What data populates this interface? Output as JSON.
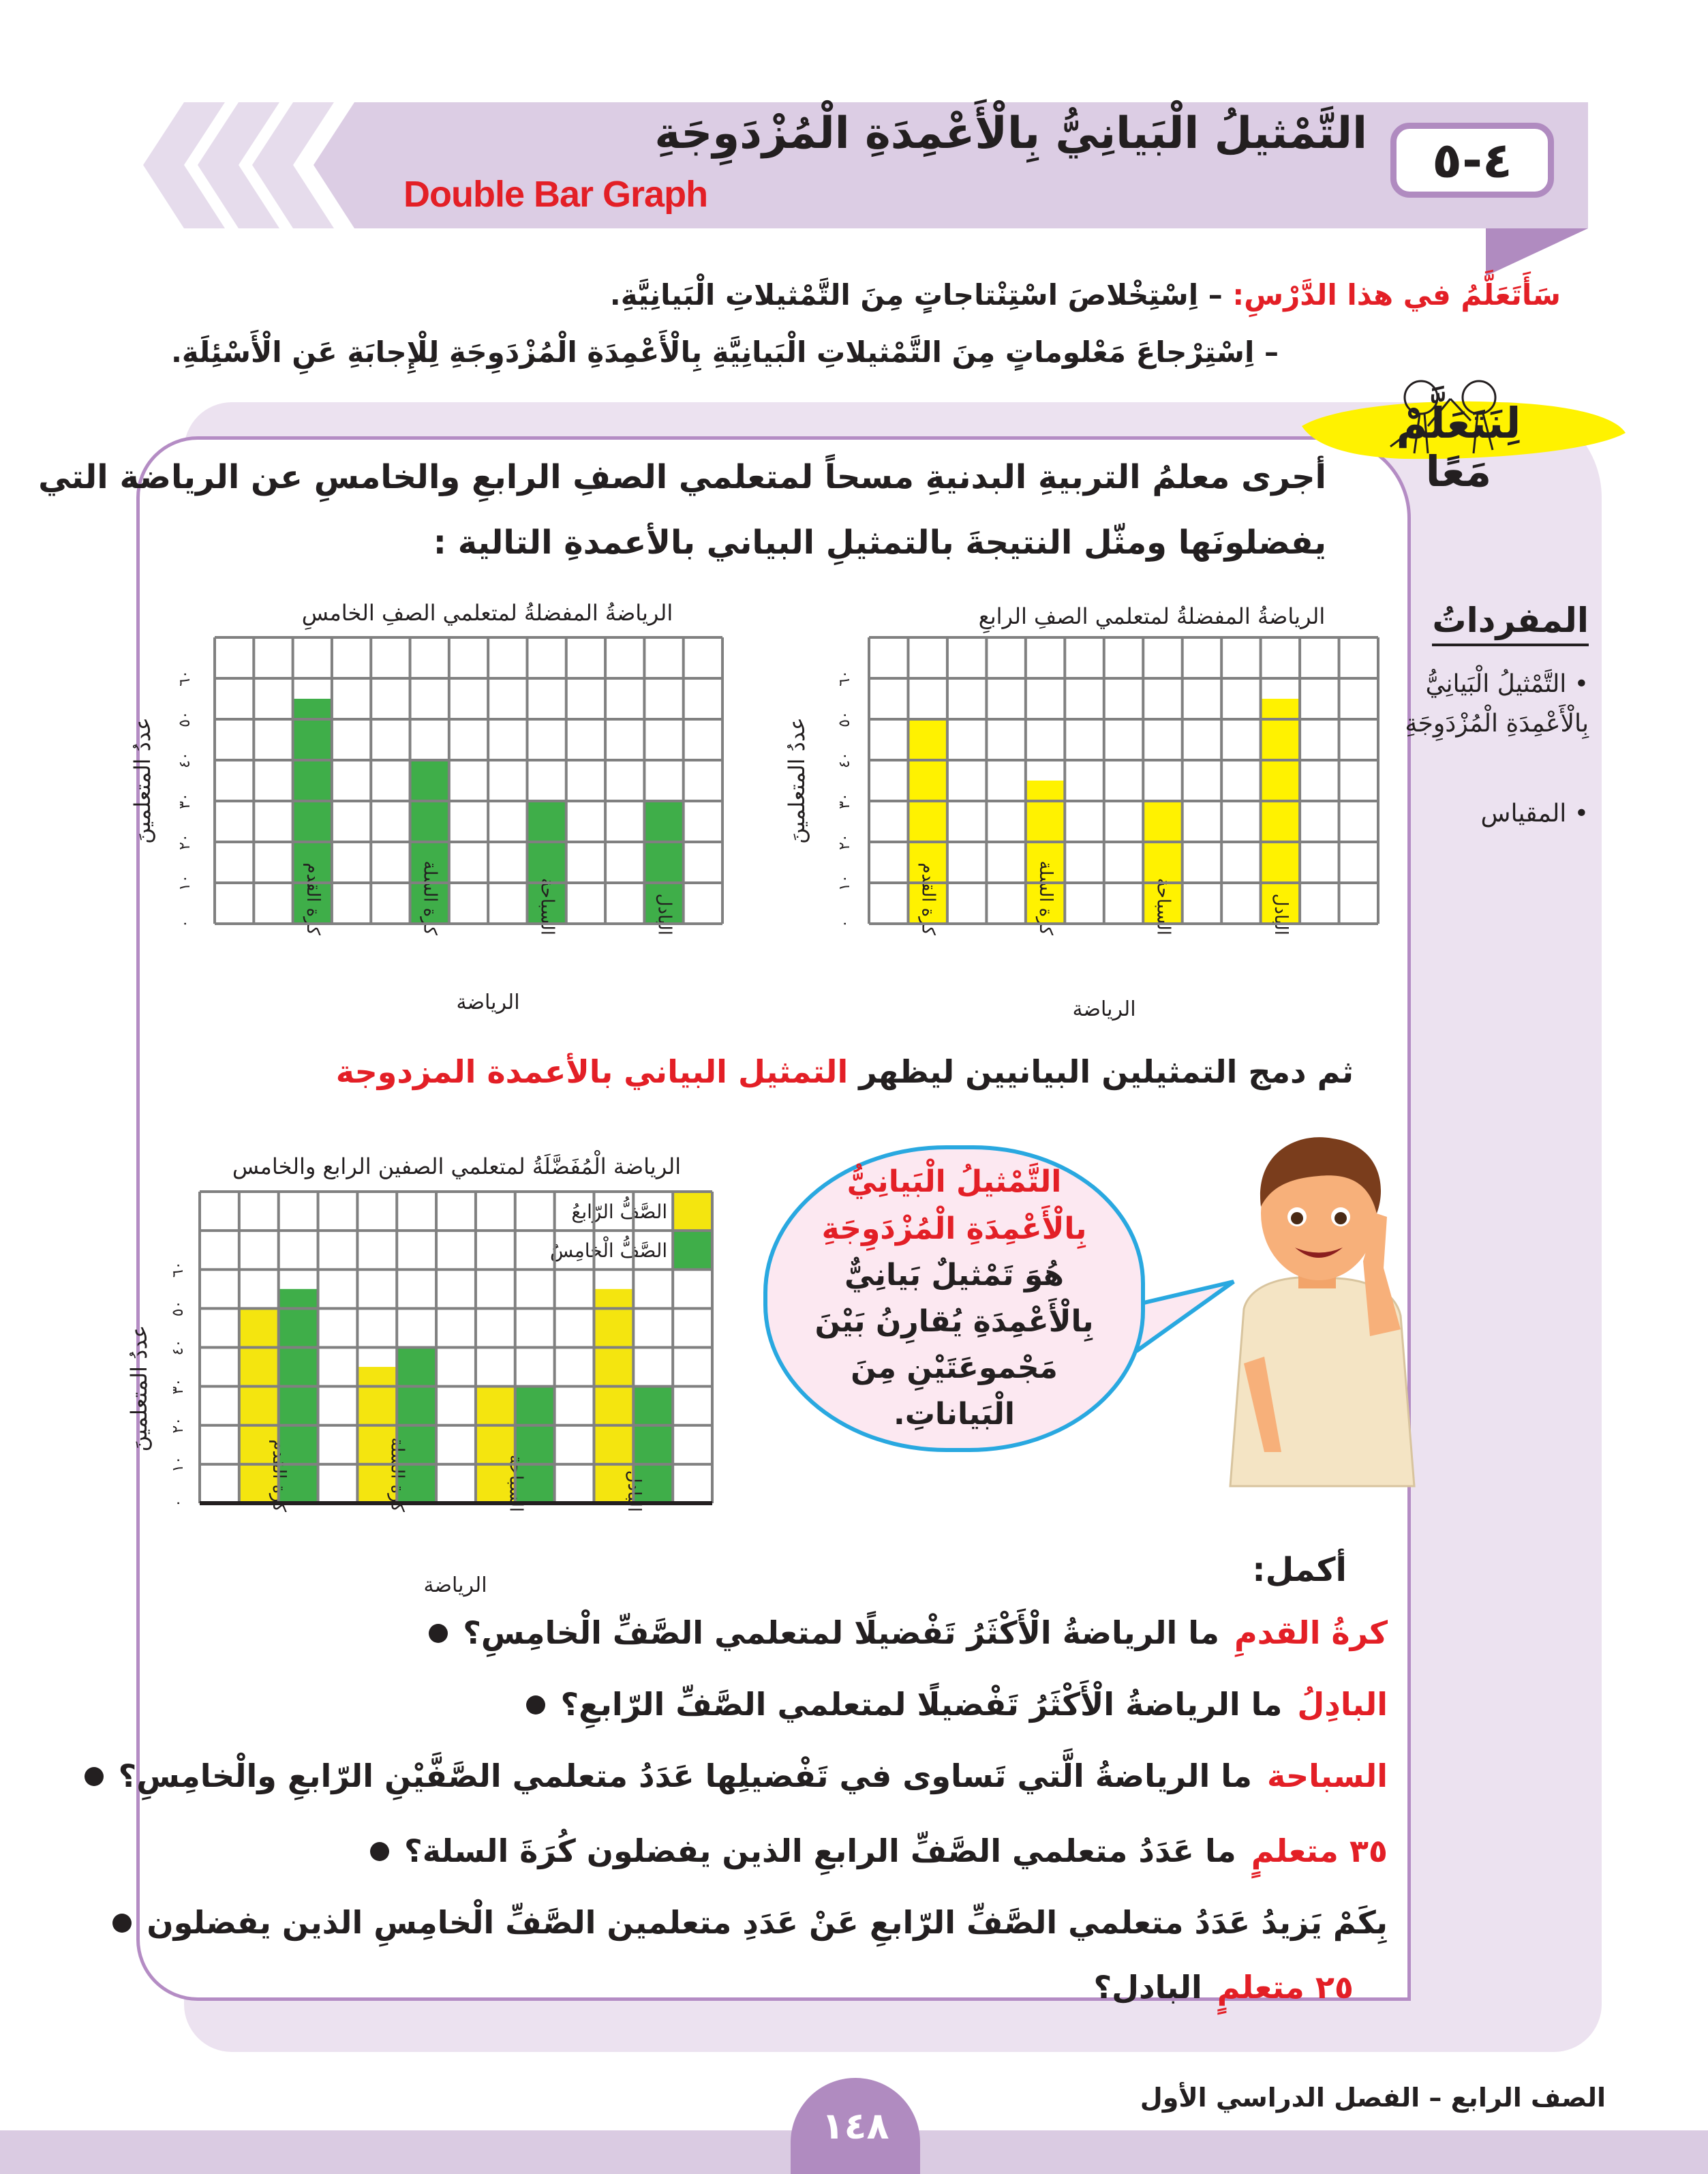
{
  "header": {
    "lesson_number": "٤-٥",
    "title": "التَّمْثيلُ الْبَيانِيُّ بِالْأَعْمِدَةِ الْمُزْدَوِجَةِ",
    "subtitle_en": "Double Bar Graph"
  },
  "objectives": {
    "lead": "سَأَتَعَلَّمُ في هذا الدَّرْسِ:",
    "items": [
      "– اِسْتِخْلاصَ اسْتِنْتاجاتٍ مِنَ التَّمْثيلاتِ الْبَيانِيَّةِ.",
      "– اِسْتِرْجاعَ مَعْلوماتٍ مِنَ التَّمْثيلاتِ الْبَيانِيَّةِ بِالْأَعْمِدَةِ الْمُزْدَوِجَةِ لِلْإِجابَةِ عَنِ الْأَسْئِلَةِ."
    ]
  },
  "badge": "لِنَتَعَلَّمْ مَعًا",
  "vocab": {
    "title": "المفرداتُ",
    "items": [
      "التَّمْثيلُ الْبَيانِيُّ بِالْأَعْمِدَةِ الْمُزْدَوِجَةِ",
      "المقياس"
    ]
  },
  "intro": [
    "أجرى معلمُ التربيةِ البدنيةِ مسحاً لمتعلمي الصفِ الرابعِ والخامسِ عن الرياضة التي",
    "يفضلونَها ومثّل النتيجةَ بالتمثيلِ البياني بالأعمدةِ التالية :"
  ],
  "merge_sentence": {
    "text": "ثم دمج التمثيلين البيانيين ليظهر",
    "highlight": "التمثيل البياني بالأعمدة المزدوجة"
  },
  "bubble": {
    "highlight": "التَّمْثيلُ الْبَيانِيُّ بِالْأَعْمِدَةِ الْمُزْدَوِجَةِ",
    "text": "هُوَ تَمْثيلٌ بَيانِيٌّ بِالْأَعْمِدَةِ يُقارِنُ بَيْنَ مَجْموعَتَيْنِ مِنَ الْبَياناتِ."
  },
  "exercise": {
    "title": "أكمل:",
    "questions": [
      {
        "q": "ما الرياضةُ الْأَكْثَرُ تَفْضيلًا لمتعلمي الصَّفِّ الْخامِسِ؟",
        "a": "كرةُ القدمِ"
      },
      {
        "q": "ما الرياضةُ الْأَكْثَرُ تَفْضيلًا لمتعلمي الصَّفِّ الرّابعِ؟",
        "a": "البادِلُ"
      },
      {
        "q": "ما الرياضةُ الَّتي تَساوى في تَفْضيلِها عَدَدُ متعلمي الصَّفَّيْنِ الرّابعِ والْخامِسِ؟",
        "a": "السباحة"
      },
      {
        "q": "ما عَدَدُ متعلمي الصَّفِّ الرابعِ الذين يفضلون كُرَةَ السلة؟",
        "a": "٣٥ متعلمٍ"
      },
      {
        "q": "بِكَمْ يَزيدُ عَدَدُ متعلمي الصَّفِّ الرّابعِ عَنْ عَدَدِ متعلمين الصَّفِّ الْخامِسِ الذين يفضلون",
        "q2": "البادل؟",
        "a": "٢٥ متعلمٍ"
      }
    ]
  },
  "footer": {
    "text": "الصف الرابع – الفصل الدراسي الأول",
    "page": "١٤٨"
  },
  "colors": {
    "fourth": "#fff200",
    "fourth_combined": "#f4e50f",
    "fifth": "#3fae49",
    "accent_red": "#e31f26",
    "purple": "#b08bc0"
  },
  "chart_data": [
    {
      "type": "bar",
      "title": "الرياضةُ المفضلةُ لمتعلمي الصفِ الرابعِ",
      "xlabel": "الرياضة",
      "ylabel": "عددُ المتعلمينَ",
      "categories": [
        "كرة القدم",
        "كرة السلة",
        "السباحة",
        "البادل"
      ],
      "values": [
        50,
        35,
        30,
        55
      ],
      "ylim": [
        0,
        70
      ],
      "yticks": [
        0,
        10,
        20,
        30,
        40,
        50,
        60
      ],
      "ytick_labels": [
        "٠",
        "١٠",
        "٢٠",
        "٣٠",
        "٤٠",
        "٥٠",
        "٦٠"
      ],
      "grid": true,
      "color": "#fff200"
    },
    {
      "type": "bar",
      "title": "الرياضةُ المفضلةُ لمتعلمي الصفِ الخامسِ",
      "xlabel": "الرياضة",
      "ylabel": "عددُ المتعلمينَ",
      "categories": [
        "كرة القدم",
        "كرة السلة",
        "السباحة",
        "البادل"
      ],
      "values": [
        55,
        40,
        30,
        30
      ],
      "ylim": [
        0,
        70
      ],
      "yticks": [
        0,
        10,
        20,
        30,
        40,
        50,
        60
      ],
      "ytick_labels": [
        "٠",
        "١٠",
        "٢٠",
        "٣٠",
        "٤٠",
        "٥٠",
        "٦٠"
      ],
      "grid": true,
      "color": "#3fae49"
    },
    {
      "type": "bar",
      "title": "الرياضة الْمُفَضَّلَةُ لمتعلمي الصفين الرابع والخامس",
      "xlabel": "الرياضة",
      "ylabel": "عددُ المتعلمينَ",
      "categories": [
        "كرة القدم",
        "كرة السلة",
        "السباحة",
        "البادل"
      ],
      "series": [
        {
          "name": "الصَّفُّ الرّابعُ",
          "values": [
            50,
            35,
            30,
            55
          ],
          "color": "#f4e50f"
        },
        {
          "name": "الصَّفُّ الْخامِسُ",
          "values": [
            55,
            40,
            30,
            30
          ],
          "color": "#3fae49"
        }
      ],
      "ylim": [
        0,
        80
      ],
      "yticks": [
        0,
        10,
        20,
        30,
        40,
        50,
        60
      ],
      "ytick_labels": [
        "٠",
        "١٠",
        "٢٠",
        "٣٠",
        "٤٠",
        "٥٠",
        "٦٠"
      ],
      "grid": true,
      "legend": "top-right"
    }
  ]
}
